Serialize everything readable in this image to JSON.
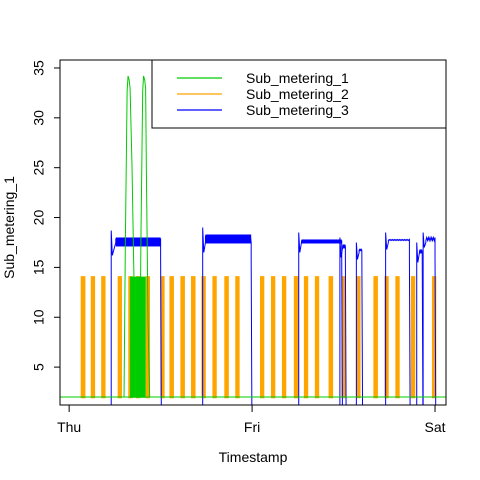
{
  "chart_data": {
    "type": "line",
    "title": "",
    "xlabel": "Timestamp",
    "ylabel": "Sub_metering_1",
    "x_ticks": [
      "Thu",
      "Fri",
      "Sat"
    ],
    "x_tick_days": [
      0,
      1,
      2
    ],
    "xlim_days": [
      0,
      2
    ],
    "ylim": [
      0,
      35
    ],
    "y_ticks": [
      5,
      10,
      15,
      20,
      25,
      30,
      35
    ],
    "grid": false,
    "legend_placement": "top-right",
    "series": [
      {
        "name": "Sub_metering_1",
        "color": "#00cc00",
        "baseline": 2,
        "bursts_days": [
          [
            0.337,
            0.342,
            14
          ],
          [
            0.35,
            0.356,
            14
          ],
          [
            0.365,
            0.37,
            14
          ],
          [
            0.378,
            0.384,
            14
          ],
          [
            0.392,
            0.398,
            14
          ],
          [
            0.406,
            0.411,
            14
          ]
        ],
        "peaks_days": [
          [
            0.3,
            0.325,
            0.372,
            34.2
          ],
          [
            0.385,
            0.41,
            0.44,
            34.2
          ]
        ]
      },
      {
        "name": "Sub_metering_2",
        "color": "#ffa500",
        "baseline": 2,
        "bursts_days": [
          [
            0.07,
            0.082,
            14
          ],
          [
            0.125,
            0.135,
            14
          ],
          [
            0.182,
            0.192,
            14
          ],
          [
            0.272,
            0.282,
            14
          ],
          [
            0.33,
            0.34,
            14
          ],
          [
            0.372,
            0.382,
            14
          ],
          [
            0.425,
            0.435,
            14
          ],
          [
            0.505,
            0.515,
            14
          ],
          [
            0.555,
            0.566,
            14
          ],
          [
            0.615,
            0.626,
            14
          ],
          [
            0.673,
            0.684,
            14
          ],
          [
            0.73,
            0.74,
            14
          ],
          [
            0.79,
            0.8,
            14
          ],
          [
            0.855,
            0.866,
            14
          ],
          [
            0.915,
            0.925,
            14
          ],
          [
            1.05,
            1.06,
            14
          ],
          [
            1.11,
            1.12,
            14
          ],
          [
            1.17,
            1.18,
            14
          ],
          [
            1.235,
            1.246,
            14
          ],
          [
            1.29,
            1.3,
            14
          ],
          [
            1.35,
            1.36,
            14
          ],
          [
            1.425,
            1.436,
            14
          ],
          [
            1.495,
            1.506,
            14
          ],
          [
            1.575,
            1.586,
            14
          ],
          [
            1.67,
            1.681,
            14
          ],
          [
            1.73,
            1.74,
            14
          ],
          [
            1.79,
            1.8,
            14
          ],
          [
            1.875,
            1.885,
            14
          ],
          [
            1.99,
            2.0,
            14
          ]
        ]
      },
      {
        "name": "Sub_metering_3",
        "color": "#0000ff",
        "baseline": 0,
        "blocks_days": [
          [
            0.23,
            0.255,
            0.5,
            17.5,
            16.2,
            18.2
          ],
          [
            0.73,
            0.745,
            0.995,
            17.5,
            16.5,
            18.5
          ],
          [
            1.255,
            1.27,
            1.49,
            17.5,
            16.5,
            18.0
          ],
          [
            1.48,
            1.495,
            1.51,
            17.0,
            16.0,
            17.5
          ],
          [
            1.57,
            1.585,
            1.6,
            16.5,
            15.8,
            17.0
          ],
          [
            1.73,
            1.745,
            1.86,
            17.5,
            16.8,
            18.0
          ],
          [
            1.9,
            1.915,
            1.93,
            16.5,
            15.5,
            17.0
          ],
          [
            1.935,
            1.95,
            2.0,
            17.5,
            17.0,
            18.0
          ]
        ]
      }
    ]
  }
}
